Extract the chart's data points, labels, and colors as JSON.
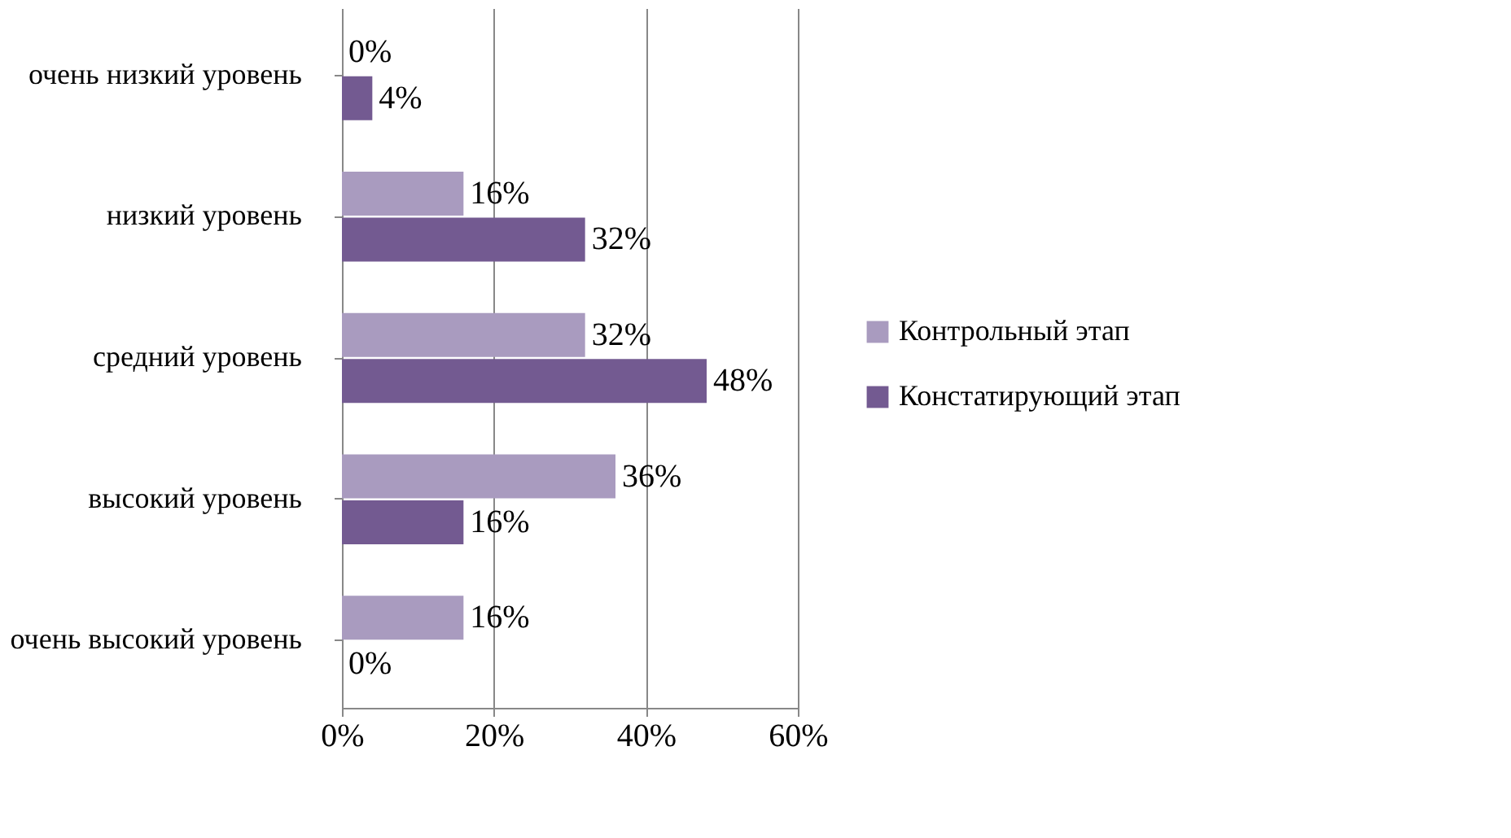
{
  "chart_data": {
    "type": "bar",
    "orientation": "horizontal",
    "categories": [
      "очень низкий уровень",
      "низкий уровень",
      "средний уровень",
      "высокий уровень",
      "очень высокий уровень"
    ],
    "series": [
      {
        "name": "Контрольный этап",
        "color": "#a99bbf",
        "values": [
          0,
          16,
          32,
          36,
          16
        ],
        "value_labels": [
          "0%",
          "16%",
          "32%",
          "36%",
          "16%"
        ]
      },
      {
        "name": "Констатирующий этап",
        "color": "#735a91",
        "values": [
          4,
          32,
          48,
          16,
          0
        ],
        "value_labels": [
          "4%",
          "32%",
          "48%",
          "16%",
          "0%"
        ]
      }
    ],
    "xlim": [
      0,
      60
    ],
    "xticks": [
      {
        "value": 0,
        "label": "0%"
      },
      {
        "value": 20,
        "label": "20%"
      },
      {
        "value": 40,
        "label": "40%"
      },
      {
        "value": 60,
        "label": "60%"
      }
    ],
    "grid": "x",
    "legend": "right"
  }
}
